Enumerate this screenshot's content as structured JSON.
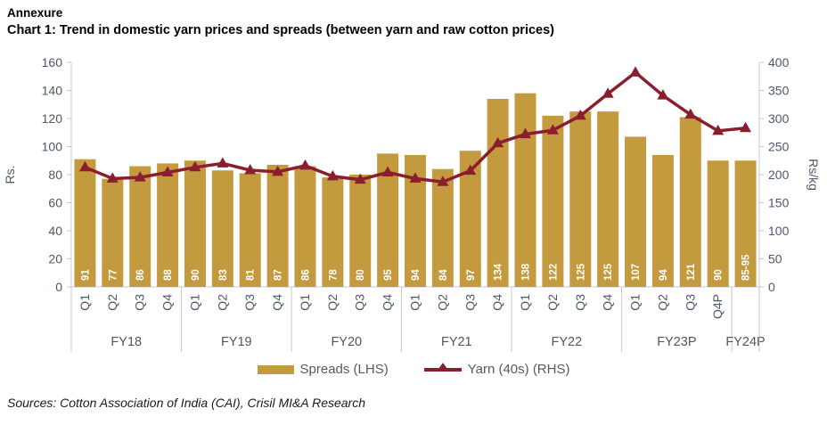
{
  "header": {
    "annexure": "Annexure",
    "title": "Chart 1: Trend in domestic yarn prices and spreads (between yarn and raw cotton prices)"
  },
  "chart_data": {
    "type": "combo-bar-line",
    "categories": [
      "Q1",
      "Q2",
      "Q3",
      "Q4",
      "Q1",
      "Q2",
      "Q3",
      "Q4",
      "Q1",
      "Q2",
      "Q3",
      "Q4",
      "Q1",
      "Q2",
      "Q3",
      "Q4",
      "Q1",
      "Q2",
      "Q3",
      "Q4",
      "Q1",
      "Q2",
      "Q3",
      "Q4P",
      ""
    ],
    "groups": [
      {
        "label": "FY18",
        "count": 4
      },
      {
        "label": "FY19",
        "count": 4
      },
      {
        "label": "FY20",
        "count": 4
      },
      {
        "label": "FY21",
        "count": 4
      },
      {
        "label": "FY22",
        "count": 4
      },
      {
        "label": "FY23P",
        "count": 4
      },
      {
        "label": "FY24P",
        "count": 1
      }
    ],
    "series": [
      {
        "name": "Spreads (LHS)",
        "type": "bar",
        "axis": "left",
        "color": "#C49A3E",
        "values": [
          91,
          77,
          86,
          88,
          90,
          83,
          81,
          87,
          86,
          78,
          80,
          95,
          94,
          84,
          97,
          134,
          138,
          122,
          125,
          125,
          107,
          94,
          121,
          90,
          90
        ],
        "value_labels": [
          "91",
          "77",
          "86",
          "88",
          "90",
          "83",
          "81",
          "87",
          "86",
          "78",
          "80",
          "95",
          "94",
          "84",
          "97",
          "134",
          "138",
          "122",
          "125",
          "125",
          "107",
          "94",
          "121",
          "90",
          "85-95"
        ],
        "label_color": "#FFFFFF"
      },
      {
        "name": "Yarn (40s) (RHS)",
        "type": "line",
        "axis": "right",
        "color": "#8B1E2E",
        "marker": "triangle-up",
        "values": [
          213,
          193,
          195,
          204,
          213,
          220,
          208,
          205,
          216,
          197,
          191,
          204,
          193,
          187,
          207,
          256,
          272,
          279,
          305,
          344,
          382,
          341,
          307,
          278,
          283
        ]
      }
    ],
    "left_axis": {
      "label": "Rs.",
      "min": 0,
      "max": 160,
      "step": 20
    },
    "right_axis": {
      "label": "Rs/kg",
      "min": 0,
      "max": 400,
      "step": 50
    },
    "grid": false,
    "legend_position": "bottom",
    "axis_text_color": "#4C5866",
    "axis_line_color": "#C8C8C8"
  },
  "source": "Sources: Cotton Association of India (CAI), Crisil MI&A Research"
}
